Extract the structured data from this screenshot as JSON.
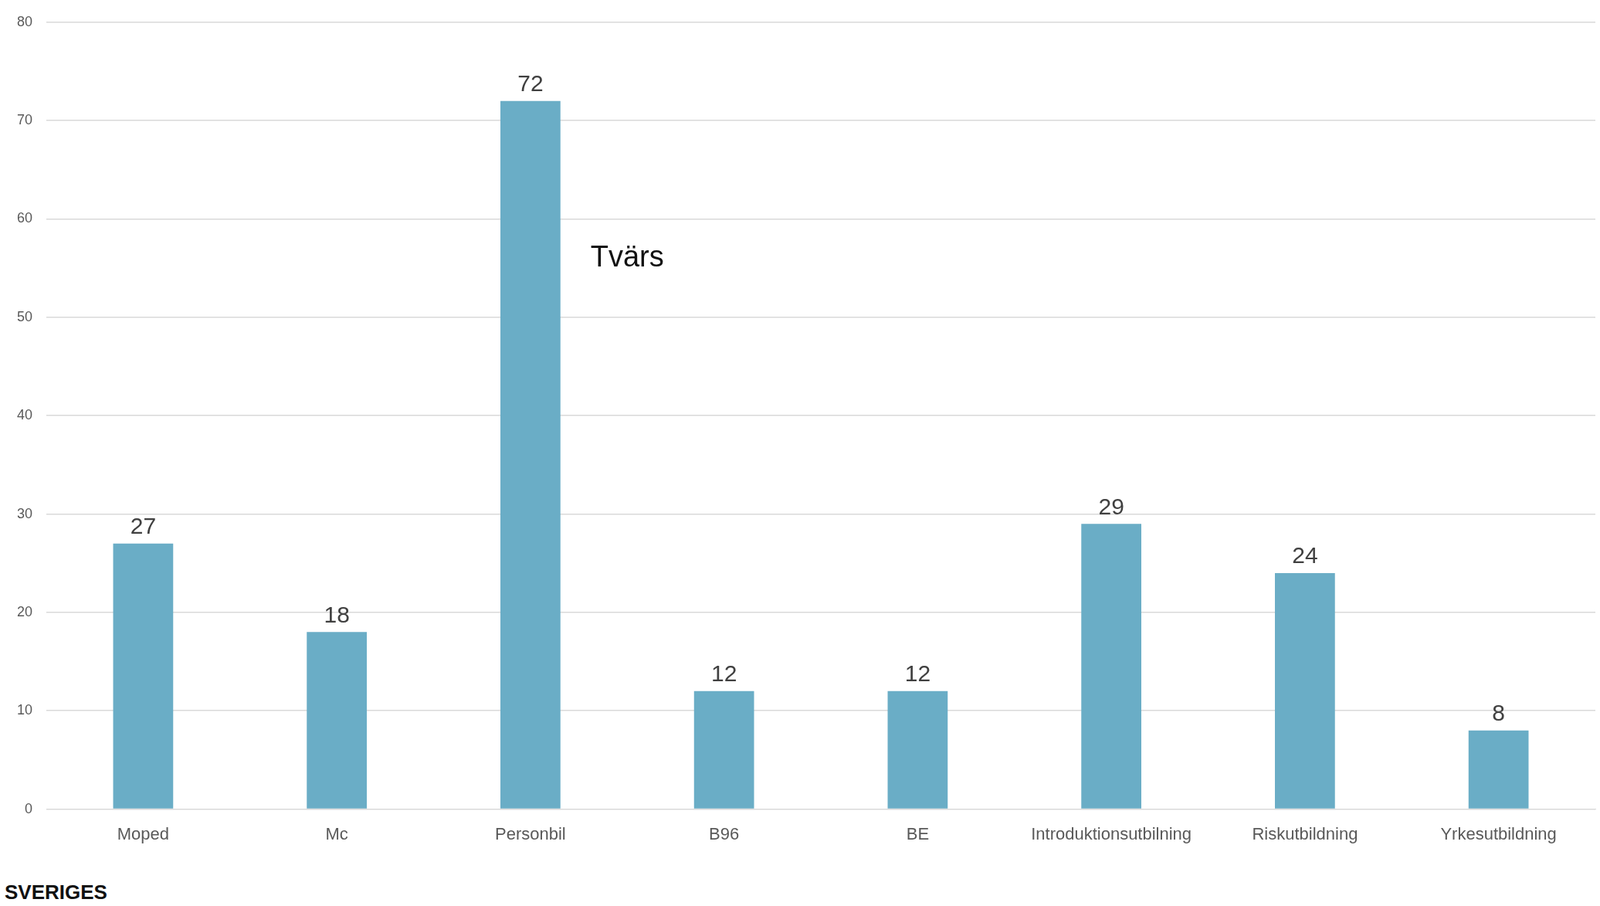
{
  "chart_data": {
    "type": "bar",
    "categories": [
      "Moped",
      "Mc",
      "Personbil",
      "B96",
      "BE",
      "Introduktionsutbilning",
      "Riskutbildning",
      "Yrkesutbildning"
    ],
    "values": [
      27,
      18,
      72,
      12,
      12,
      29,
      24,
      8
    ],
    "color": "#6aadc6",
    "ylim": [
      0,
      80
    ],
    "yticks": [
      0,
      10,
      20,
      30,
      40,
      50,
      60,
      70,
      80
    ],
    "grid": true,
    "data_labels": true,
    "annotation": "Tvärs",
    "footer": "SVERIGES"
  }
}
